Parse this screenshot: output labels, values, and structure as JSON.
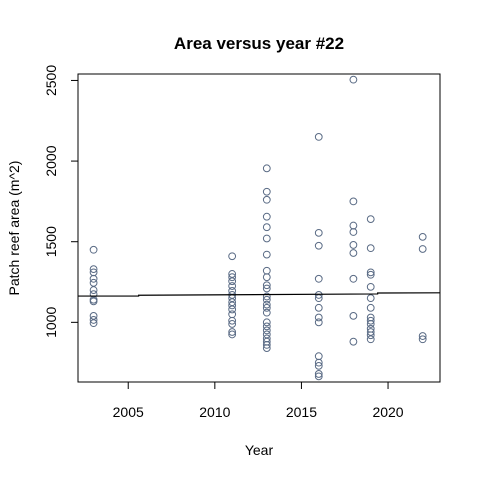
{
  "chart_data": {
    "type": "scatter",
    "title": "Area versus year #22",
    "xlabel": "Year",
    "ylabel": "Patch reef area (m^2)",
    "xlim": [
      2002.1,
      2023.0
    ],
    "ylim": [
      630,
      2540
    ],
    "x_ticks": [
      2005,
      2010,
      2015,
      2020
    ],
    "y_ticks": [
      1000,
      1500,
      2000,
      2500
    ],
    "grid": false,
    "point_color": "#5a6b85",
    "line_color": "#000000",
    "points": [
      {
        "x": 2003,
        "y": 1450
      },
      {
        "x": 2003,
        "y": 1330
      },
      {
        "x": 2003,
        "y": 1310
      },
      {
        "x": 2003,
        "y": 1270
      },
      {
        "x": 2003,
        "y": 1245
      },
      {
        "x": 2003,
        "y": 1200
      },
      {
        "x": 2003,
        "y": 1175
      },
      {
        "x": 2003,
        "y": 1140
      },
      {
        "x": 2003,
        "y": 1130
      },
      {
        "x": 2003,
        "y": 1040
      },
      {
        "x": 2003,
        "y": 1015
      },
      {
        "x": 2003,
        "y": 995
      },
      {
        "x": 2011,
        "y": 1410
      },
      {
        "x": 2011,
        "y": 1300
      },
      {
        "x": 2011,
        "y": 1280
      },
      {
        "x": 2011,
        "y": 1255
      },
      {
        "x": 2011,
        "y": 1225
      },
      {
        "x": 2011,
        "y": 1195
      },
      {
        "x": 2011,
        "y": 1170
      },
      {
        "x": 2011,
        "y": 1150
      },
      {
        "x": 2011,
        "y": 1125
      },
      {
        "x": 2011,
        "y": 1105
      },
      {
        "x": 2011,
        "y": 1080
      },
      {
        "x": 2011,
        "y": 1050
      },
      {
        "x": 2011,
        "y": 1010
      },
      {
        "x": 2011,
        "y": 990
      },
      {
        "x": 2011,
        "y": 940
      },
      {
        "x": 2011,
        "y": 925
      },
      {
        "x": 2013,
        "y": 1955
      },
      {
        "x": 2013,
        "y": 1810
      },
      {
        "x": 2013,
        "y": 1760
      },
      {
        "x": 2013,
        "y": 1655
      },
      {
        "x": 2013,
        "y": 1590
      },
      {
        "x": 2013,
        "y": 1520
      },
      {
        "x": 2013,
        "y": 1420
      },
      {
        "x": 2013,
        "y": 1320
      },
      {
        "x": 2013,
        "y": 1280
      },
      {
        "x": 2013,
        "y": 1230
      },
      {
        "x": 2013,
        "y": 1210
      },
      {
        "x": 2013,
        "y": 1160
      },
      {
        "x": 2013,
        "y": 1140
      },
      {
        "x": 2013,
        "y": 1110
      },
      {
        "x": 2013,
        "y": 1090
      },
      {
        "x": 2013,
        "y": 1060
      },
      {
        "x": 2013,
        "y": 1000
      },
      {
        "x": 2013,
        "y": 975
      },
      {
        "x": 2013,
        "y": 950
      },
      {
        "x": 2013,
        "y": 925
      },
      {
        "x": 2013,
        "y": 900
      },
      {
        "x": 2013,
        "y": 880
      },
      {
        "x": 2013,
        "y": 860
      },
      {
        "x": 2013,
        "y": 840
      },
      {
        "x": 2016,
        "y": 2150
      },
      {
        "x": 2016,
        "y": 1555
      },
      {
        "x": 2016,
        "y": 1475
      },
      {
        "x": 2016,
        "y": 1270
      },
      {
        "x": 2016,
        "y": 1170
      },
      {
        "x": 2016,
        "y": 1150
      },
      {
        "x": 2016,
        "y": 1090
      },
      {
        "x": 2016,
        "y": 1030
      },
      {
        "x": 2016,
        "y": 1000
      },
      {
        "x": 2016,
        "y": 790
      },
      {
        "x": 2016,
        "y": 750
      },
      {
        "x": 2016,
        "y": 730
      },
      {
        "x": 2016,
        "y": 680
      },
      {
        "x": 2016,
        "y": 665
      },
      {
        "x": 2018,
        "y": 2505
      },
      {
        "x": 2018,
        "y": 1750
      },
      {
        "x": 2018,
        "y": 1600
      },
      {
        "x": 2018,
        "y": 1560
      },
      {
        "x": 2018,
        "y": 1480
      },
      {
        "x": 2018,
        "y": 1430
      },
      {
        "x": 2018,
        "y": 1270
      },
      {
        "x": 2018,
        "y": 1040
      },
      {
        "x": 2018,
        "y": 880
      },
      {
        "x": 2019,
        "y": 1640
      },
      {
        "x": 2019,
        "y": 1460
      },
      {
        "x": 2019,
        "y": 1310
      },
      {
        "x": 2019,
        "y": 1295
      },
      {
        "x": 2019,
        "y": 1220
      },
      {
        "x": 2019,
        "y": 1150
      },
      {
        "x": 2019,
        "y": 1090
      },
      {
        "x": 2019,
        "y": 1030
      },
      {
        "x": 2019,
        "y": 1010
      },
      {
        "x": 2019,
        "y": 990
      },
      {
        "x": 2019,
        "y": 960
      },
      {
        "x": 2019,
        "y": 940
      },
      {
        "x": 2019,
        "y": 920
      },
      {
        "x": 2019,
        "y": 895
      },
      {
        "x": 2022,
        "y": 1530
      },
      {
        "x": 2022,
        "y": 1455
      },
      {
        "x": 2022,
        "y": 915
      },
      {
        "x": 2022,
        "y": 895
      }
    ],
    "fit_line": [
      {
        "x": 2002.1,
        "y": 1163
      },
      {
        "x": 2005.6,
        "y": 1163
      },
      {
        "x": 2005.6,
        "y": 1168
      },
      {
        "x": 2019.4,
        "y": 1176
      },
      {
        "x": 2019.4,
        "y": 1182
      },
      {
        "x": 2023.0,
        "y": 1183
      }
    ]
  }
}
